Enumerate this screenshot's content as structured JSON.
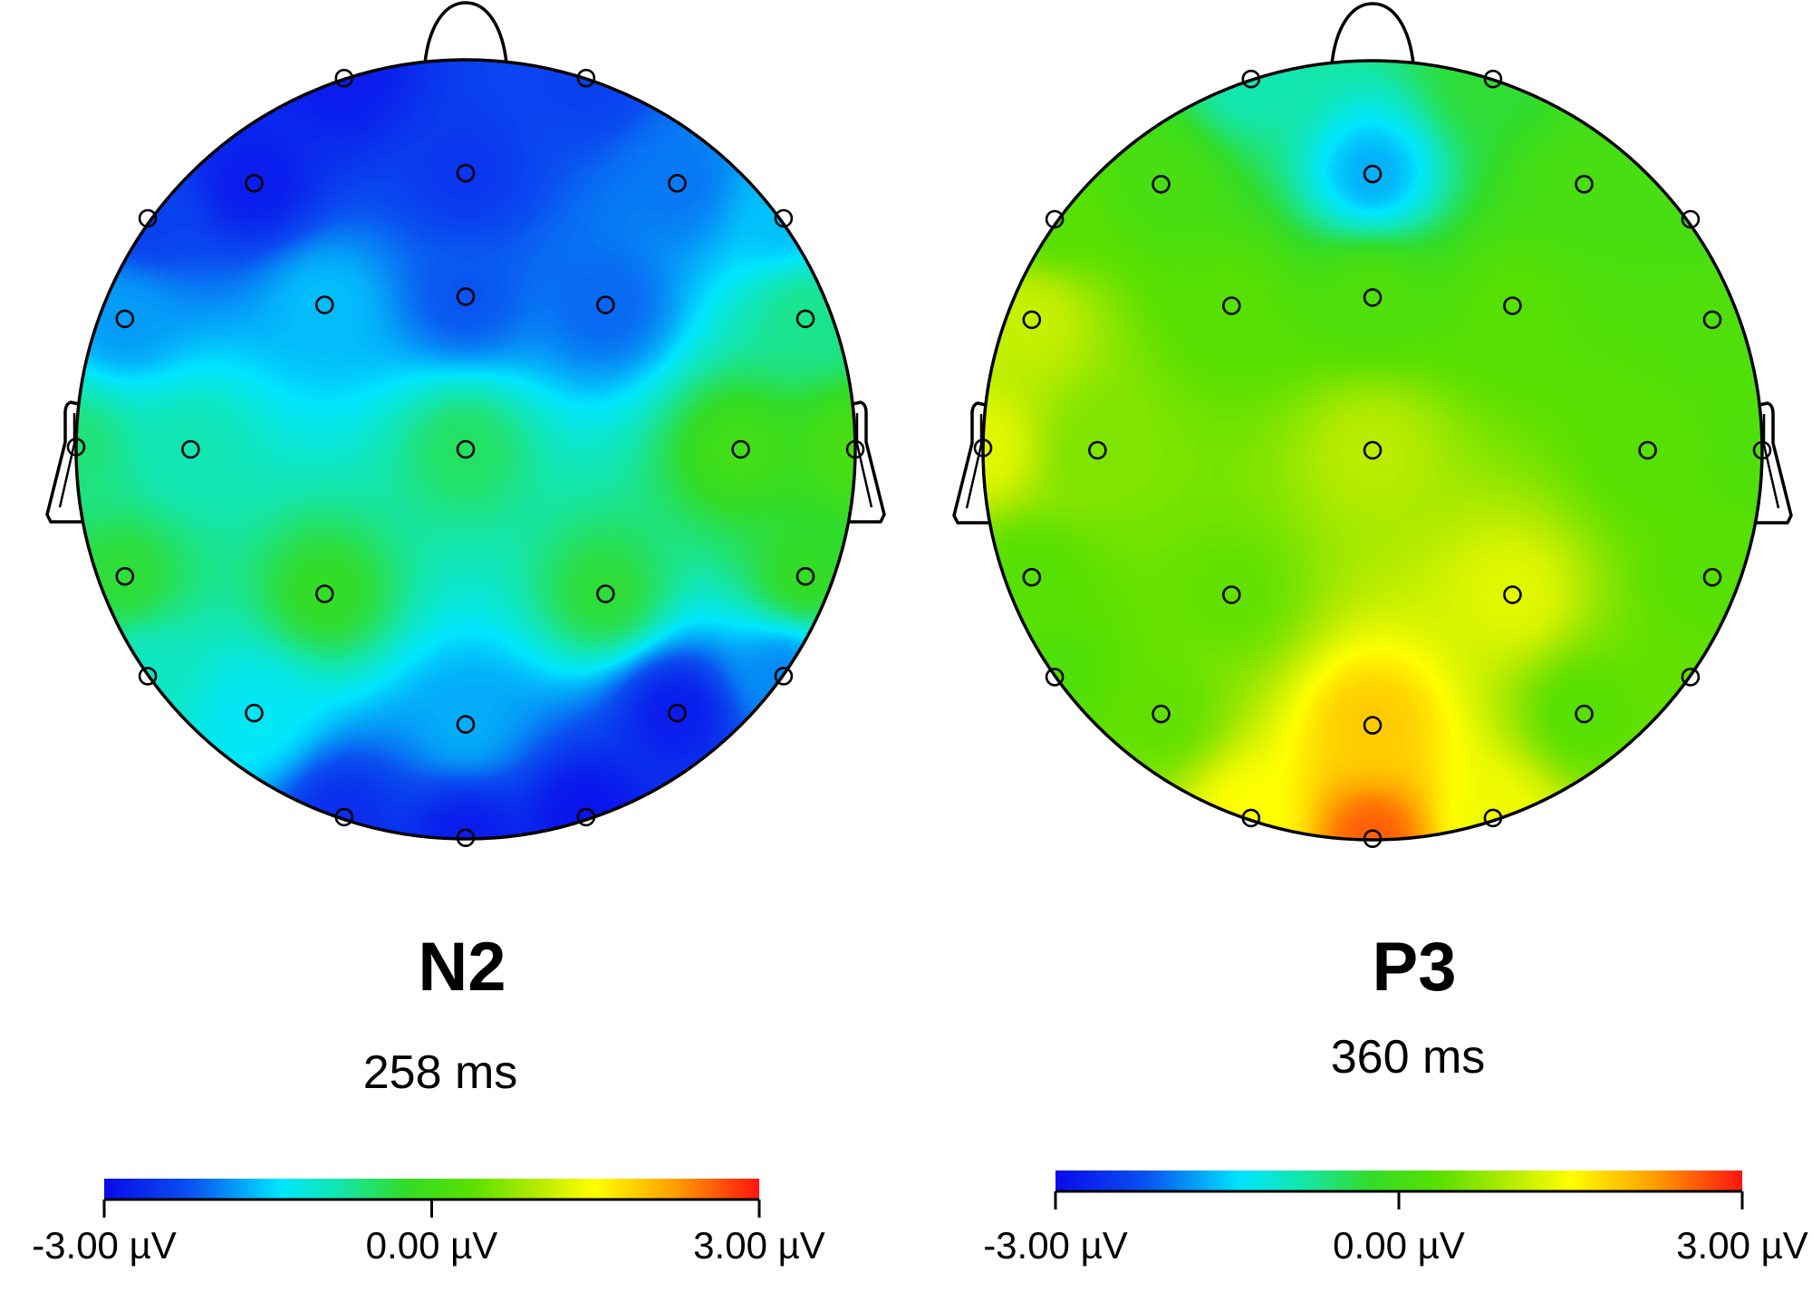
{
  "colormap": {
    "stops": [
      0.0,
      0.13,
      0.27,
      0.36,
      0.46,
      0.56,
      0.66,
      0.75,
      0.87,
      1.0
    ],
    "colors": [
      "#0a0aeb",
      "#0a50f0",
      "#00e6ff",
      "#14e6aa",
      "#32dc28",
      "#5ae000",
      "#b4eb00",
      "#ffff00",
      "#ffa000",
      "#ff1410"
    ]
  },
  "chart_data": [
    {
      "type": "heatmap",
      "title": "N2",
      "subtitle": "258 ms",
      "value_range": [
        -3.0,
        3.0
      ],
      "colorbar_ticks": [
        -3.0,
        0.0,
        3.0
      ],
      "colorbar_tick_labels": [
        "-3.00 µV",
        "0.00 µV",
        "3.00 µV"
      ],
      "electrode_values": [
        -2.8,
        -2.4,
        -2.8,
        -2.5,
        -2.0,
        -2.4,
        -1.6,
        -1.8,
        -1.6,
        -2.2,
        -2.1,
        -0.7,
        -0.6,
        -0.9,
        -0.5,
        0.0,
        0.1,
        -0.3,
        -0.2,
        -0.3,
        -0.2,
        -1.0,
        -1.9,
        -1.3,
        -1.7,
        -2.8,
        -2.6,
        -2.9,
        -2.8
      ]
    },
    {
      "type": "heatmap",
      "title": "P3",
      "subtitle": "360 ms",
      "value_range": [
        -3.0,
        3.0
      ],
      "colorbar_ticks": [
        -3.0,
        0.0,
        3.0
      ],
      "colorbar_tick_labels": [
        "-3.00 µV",
        "0.00 µV",
        "3.00 µV"
      ],
      "electrode_values": [
        -0.9,
        -0.3,
        0.1,
        -1.7,
        0.1,
        0.3,
        0.1,
        1.1,
        0.3,
        0.2,
        0.3,
        0.2,
        1.3,
        0.6,
        1.0,
        0.3,
        0.2,
        0.3,
        0.4,
        1.3,
        0.3,
        0.2,
        0.4,
        0.4,
        1.9,
        0.3,
        1.5,
        1.4,
        2.6
      ]
    }
  ]
}
